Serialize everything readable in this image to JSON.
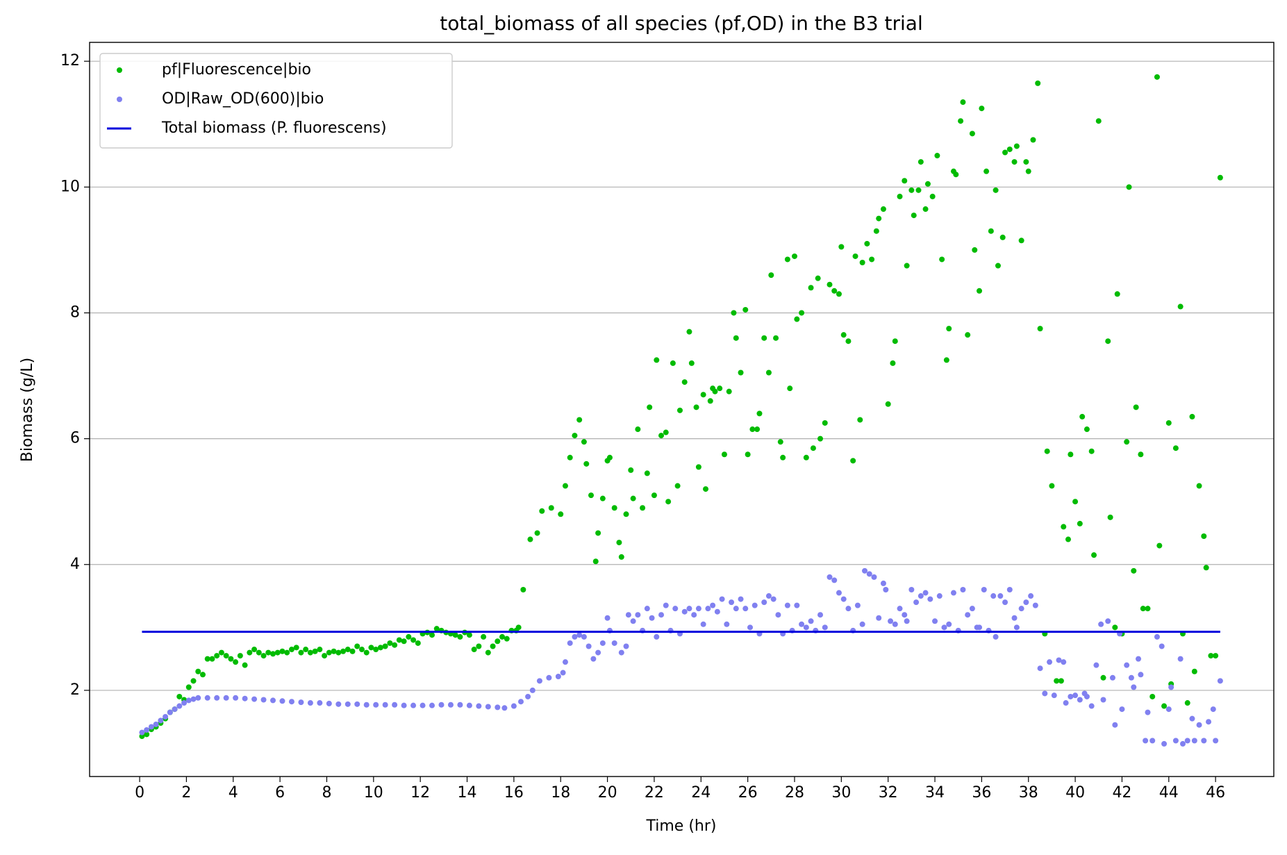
{
  "chart_data": {
    "type": "scatter",
    "title": "total_biomass of all species (pf,OD) in the B3 trial",
    "x_label": "Time (hr)",
    "y_label": "Biomass (g/L)",
    "xlim": [
      -2.14,
      48.49
    ],
    "ylim": [
      0.63,
      12.3
    ],
    "xticks": [
      0,
      2,
      4,
      6,
      8,
      10,
      12,
      14,
      16,
      18,
      20,
      22,
      24,
      26,
      28,
      30,
      32,
      34,
      36,
      38,
      40,
      42,
      44,
      46
    ],
    "yticks": [
      2,
      4,
      6,
      8,
      10,
      12
    ],
    "grid": "y",
    "legend": "upper left",
    "series": [
      {
        "name": "pf|Fluorescence|bio",
        "type": "scatter",
        "color": "#00bb00",
        "x": [
          0.1,
          0.3,
          0.5,
          0.7,
          0.9,
          1.1,
          1.3,
          1.5,
          1.7,
          1.9,
          2.1,
          2.3,
          2.5,
          2.7,
          2.9,
          3.1,
          3.3,
          3.5,
          3.7,
          3.9,
          4.1,
          4.3,
          4.5,
          4.7,
          4.9,
          5.1,
          5.3,
          5.5,
          5.7,
          5.9,
          6.1,
          6.3,
          6.5,
          6.7,
          6.9,
          7.1,
          7.3,
          7.5,
          7.7,
          7.9,
          8.1,
          8.3,
          8.5,
          8.7,
          8.9,
          9.1,
          9.3,
          9.5,
          9.7,
          9.9,
          10.1,
          10.3,
          10.5,
          10.7,
          10.9,
          11.1,
          11.3,
          11.5,
          11.7,
          11.9,
          12.1,
          12.3,
          12.5,
          12.7,
          12.9,
          13.1,
          13.3,
          13.5,
          13.7,
          13.9,
          14.1,
          14.3,
          14.5,
          14.7,
          14.9,
          15.1,
          15.3,
          15.5,
          15.7,
          15.9,
          16.1,
          16.2,
          16.4,
          16.7,
          17,
          17.2,
          17.6,
          18,
          18.2,
          18.4,
          18.6,
          18.8,
          19,
          19.1,
          19.3,
          19.5,
          19.6,
          19.8,
          20,
          20.1,
          20.3,
          20.5,
          20.6,
          20.8,
          21,
          21.1,
          21.3,
          21.5,
          21.7,
          21.8,
          22,
          22.1,
          22.3,
          22.5,
          22.6,
          22.8,
          23,
          23.1,
          23.3,
          23.5,
          23.6,
          23.8,
          23.9,
          24.1,
          24.2,
          24.4,
          24.5,
          24.6,
          24.8,
          25,
          25.2,
          25.4,
          25.5,
          25.7,
          25.9,
          26,
          26.2,
          26.4,
          26.5,
          26.7,
          26.9,
          27,
          27.2,
          27.4,
          27.5,
          27.7,
          27.8,
          28,
          28.1,
          28.3,
          28.5,
          28.7,
          28.8,
          29,
          29.1,
          29.3,
          29.5,
          29.7,
          29.9,
          30,
          30.1,
          30.3,
          30.5,
          30.6,
          30.8,
          30.9,
          31.1,
          31.3,
          31.5,
          31.6,
          31.8,
          32,
          32.2,
          32.3,
          32.5,
          32.7,
          32.8,
          33,
          33.1,
          33.3,
          33.4,
          33.6,
          33.7,
          33.9,
          34.1,
          34.3,
          34.5,
          34.6,
          34.8,
          34.9,
          35.1,
          35.2,
          35.4,
          35.6,
          35.7,
          35.9,
          36,
          36.2,
          36.4,
          36.6,
          36.7,
          36.9,
          37,
          37.2,
          37.4,
          37.5,
          37.7,
          37.9,
          38,
          38.2,
          38.4,
          38.5,
          38.7,
          38.8,
          39,
          39.2,
          39.4,
          39.5,
          39.7,
          39.8,
          40,
          40.2,
          40.3,
          40.5,
          40.7,
          40.8,
          41,
          41.2,
          41.4,
          41.5,
          41.7,
          41.8,
          42,
          42.2,
          42.3,
          42.5,
          42.6,
          42.8,
          42.9,
          43.1,
          43.3,
          43.5,
          43.6,
          43.8,
          44,
          44.1,
          44.3,
          44.5,
          44.6,
          44.8,
          45,
          45.1,
          45.3,
          45.5,
          45.6,
          45.8,
          46,
          46.2
        ],
        "values": [
          1.27,
          1.3,
          1.38,
          1.42,
          1.48,
          1.55,
          1.65,
          1.7,
          1.9,
          1.85,
          2.05,
          2.15,
          2.3,
          2.25,
          2.5,
          2.5,
          2.55,
          2.6,
          2.55,
          2.5,
          2.45,
          2.55,
          2.4,
          2.6,
          2.65,
          2.6,
          2.55,
          2.6,
          2.58,
          2.6,
          2.62,
          2.6,
          2.65,
          2.68,
          2.6,
          2.65,
          2.6,
          2.62,
          2.65,
          2.55,
          2.6,
          2.62,
          2.6,
          2.62,
          2.65,
          2.62,
          2.7,
          2.65,
          2.6,
          2.68,
          2.65,
          2.68,
          2.7,
          2.75,
          2.72,
          2.8,
          2.78,
          2.85,
          2.8,
          2.75,
          2.9,
          2.92,
          2.88,
          2.98,
          2.95,
          2.92,
          2.9,
          2.88,
          2.85,
          2.92,
          2.88,
          2.65,
          2.7,
          2.85,
          2.6,
          2.7,
          2.78,
          2.85,
          2.82,
          2.95,
          2.95,
          3.0,
          3.6,
          4.4,
          4.5,
          4.85,
          4.9,
          4.8,
          5.25,
          5.7,
          6.05,
          6.3,
          5.95,
          5.6,
          5.1,
          4.05,
          4.5,
          5.05,
          5.65,
          5.7,
          4.9,
          4.35,
          4.12,
          4.8,
          5.5,
          5.05,
          6.15,
          4.9,
          5.45,
          6.5,
          5.1,
          7.25,
          6.05,
          6.1,
          5.0,
          7.2,
          5.25,
          6.45,
          6.9,
          7.7,
          7.2,
          6.5,
          5.55,
          6.7,
          5.2,
          6.6,
          6.8,
          6.75,
          6.8,
          5.75,
          6.75,
          8.0,
          7.6,
          7.05,
          8.05,
          5.75,
          6.15,
          6.15,
          6.4,
          7.6,
          7.05,
          8.6,
          7.6,
          5.95,
          5.7,
          8.85,
          6.8,
          8.9,
          7.9,
          8.0,
          5.7,
          8.4,
          5.85,
          8.55,
          6.0,
          6.25,
          8.45,
          8.35,
          8.3,
          9.05,
          7.65,
          7.55,
          5.65,
          8.9,
          6.3,
          8.8,
          9.1,
          8.85,
          9.3,
          9.5,
          9.65,
          6.55,
          7.2,
          7.55,
          9.85,
          10.1,
          8.75,
          9.95,
          9.55,
          9.95,
          10.4,
          9.65,
          10.05,
          9.85,
          10.5,
          8.85,
          7.25,
          7.75,
          10.25,
          10.2,
          11.05,
          11.35,
          7.65,
          10.85,
          9.0,
          8.35,
          11.25,
          10.25,
          9.3,
          9.95,
          8.75,
          9.2,
          10.55,
          10.6,
          10.4,
          10.65,
          9.15,
          10.4,
          10.25,
          10.75,
          11.65,
          7.75,
          2.9,
          5.8,
          5.25,
          2.15,
          2.15,
          4.6,
          4.4,
          5.75,
          5.0,
          4.65,
          6.35,
          6.15,
          5.8,
          4.15,
          11.05,
          2.2,
          7.55,
          4.75,
          3.0,
          8.3,
          2.9,
          5.95,
          10.0,
          3.9,
          6.5,
          5.75,
          3.3,
          3.3,
          1.9,
          11.75,
          4.3,
          1.75,
          6.25,
          2.1,
          5.85,
          8.1,
          2.9,
          1.8,
          6.35,
          2.3,
          5.25,
          4.45,
          3.95,
          2.55,
          2.55,
          10.15
        ]
      },
      {
        "name": "OD|Raw_OD(600)|bio",
        "type": "scatter",
        "color": "#8080f0",
        "x": [
          0.1,
          0.3,
          0.5,
          0.7,
          0.9,
          1.1,
          1.3,
          1.5,
          1.7,
          1.9,
          2.1,
          2.3,
          2.5,
          2.9,
          3.3,
          3.7,
          4.1,
          4.5,
          4.9,
          5.3,
          5.7,
          6.1,
          6.5,
          6.9,
          7.3,
          7.7,
          8.1,
          8.5,
          8.9,
          9.3,
          9.7,
          10.1,
          10.5,
          10.9,
          11.3,
          11.7,
          12.1,
          12.5,
          12.9,
          13.3,
          13.7,
          14.1,
          14.5,
          14.9,
          15.3,
          15.6,
          16,
          16.3,
          16.6,
          16.8,
          17.1,
          17.5,
          17.9,
          18.1,
          18.2,
          18.4,
          18.6,
          18.8,
          19,
          19.2,
          19.4,
          19.6,
          19.8,
          20,
          20.1,
          20.3,
          20.6,
          20.8,
          20.9,
          21.1,
          21.3,
          21.5,
          21.7,
          21.9,
          22.1,
          22.3,
          22.5,
          22.7,
          22.9,
          23.1,
          23.3,
          23.5,
          23.7,
          23.9,
          24.1,
          24.3,
          24.5,
          24.7,
          24.9,
          25.1,
          25.3,
          25.5,
          25.7,
          25.9,
          26.1,
          26.3,
          26.5,
          26.7,
          26.9,
          27.1,
          27.3,
          27.5,
          27.7,
          27.9,
          28.1,
          28.3,
          28.5,
          28.7,
          28.9,
          29.1,
          29.3,
          29.5,
          29.7,
          29.9,
          30.1,
          30.3,
          30.5,
          30.7,
          30.9,
          31,
          31.2,
          31.4,
          31.6,
          31.8,
          31.9,
          32.1,
          32.3,
          32.5,
          32.7,
          32.8,
          33,
          33.2,
          33.4,
          33.6,
          33.8,
          34,
          34.2,
          34.4,
          34.6,
          34.8,
          35,
          35.2,
          35.4,
          35.6,
          35.8,
          35.9,
          36.1,
          36.3,
          36.5,
          36.6,
          36.8,
          37,
          37.2,
          37.4,
          37.5,
          37.7,
          37.9,
          38.1,
          38.3,
          38.5,
          38.7,
          38.9,
          39.1,
          39.3,
          39.5,
          39.6,
          39.8,
          40,
          40.2,
          40.4,
          40.5,
          40.7,
          40.9,
          41.1,
          41.2,
          41.4,
          41.6,
          41.7,
          41.9,
          42,
          42.2,
          42.4,
          42.5,
          42.7,
          42.8,
          43,
          43.1,
          43.3,
          43.5,
          43.7,
          43.8,
          44,
          44.1,
          44.3,
          44.5,
          44.6,
          44.8,
          45,
          45.1,
          45.3,
          45.5,
          45.7,
          45.9,
          46,
          46.2
        ],
        "values": [
          1.33,
          1.37,
          1.42,
          1.46,
          1.52,
          1.58,
          1.65,
          1.7,
          1.75,
          1.8,
          1.84,
          1.86,
          1.88,
          1.88,
          1.88,
          1.88,
          1.88,
          1.87,
          1.86,
          1.85,
          1.84,
          1.83,
          1.82,
          1.81,
          1.8,
          1.8,
          1.79,
          1.78,
          1.78,
          1.78,
          1.77,
          1.77,
          1.77,
          1.77,
          1.76,
          1.76,
          1.76,
          1.76,
          1.77,
          1.77,
          1.77,
          1.76,
          1.75,
          1.74,
          1.73,
          1.72,
          1.75,
          1.82,
          1.9,
          2.0,
          2.15,
          2.2,
          2.22,
          2.28,
          2.45,
          2.75,
          2.85,
          2.88,
          2.85,
          2.7,
          2.5,
          2.6,
          2.75,
          3.15,
          2.95,
          2.75,
          2.6,
          2.7,
          3.2,
          3.1,
          3.2,
          2.95,
          3.3,
          3.15,
          2.85,
          3.2,
          3.35,
          2.95,
          3.3,
          2.9,
          3.25,
          3.3,
          3.2,
          3.3,
          3.05,
          3.3,
          3.35,
          3.25,
          3.45,
          3.05,
          3.4,
          3.3,
          3.45,
          3.3,
          3.0,
          3.35,
          2.9,
          3.4,
          3.5,
          3.45,
          3.2,
          2.9,
          3.35,
          2.95,
          3.35,
          3.05,
          3.0,
          3.1,
          2.95,
          3.2,
          3.0,
          3.8,
          3.75,
          3.55,
          3.45,
          3.3,
          2.95,
          3.35,
          3.05,
          3.9,
          3.85,
          3.8,
          3.15,
          3.7,
          3.6,
          3.1,
          3.05,
          3.3,
          3.2,
          3.1,
          3.6,
          3.4,
          3.5,
          3.55,
          3.45,
          3.1,
          3.5,
          3.0,
          3.05,
          3.55,
          2.95,
          3.6,
          3.2,
          3.3,
          3.0,
          3.0,
          3.6,
          2.95,
          3.5,
          2.85,
          3.5,
          3.4,
          3.6,
          3.15,
          3.0,
          3.3,
          3.4,
          3.5,
          3.35,
          2.35,
          1.95,
          2.45,
          1.92,
          2.48,
          2.45,
          1.8,
          1.9,
          1.92,
          1.85,
          1.95,
          1.9,
          1.75,
          2.4,
          3.05,
          1.85,
          3.1,
          2.2,
          1.45,
          2.9,
          1.7,
          2.4,
          2.2,
          2.05,
          2.5,
          2.25,
          1.2,
          1.65,
          1.2,
          2.85,
          2.7,
          1.15,
          1.7,
          2.05,
          1.2,
          2.5,
          1.15,
          1.2,
          1.55,
          1.2,
          1.45,
          1.2,
          1.5,
          1.7,
          1.2,
          2.15
        ]
      },
      {
        "name": "Total biomass (P. fluorescens)",
        "type": "line",
        "color": "#0000dd",
        "x": [
          0.1,
          46.2
        ],
        "values": [
          2.93,
          2.93
        ]
      }
    ]
  }
}
